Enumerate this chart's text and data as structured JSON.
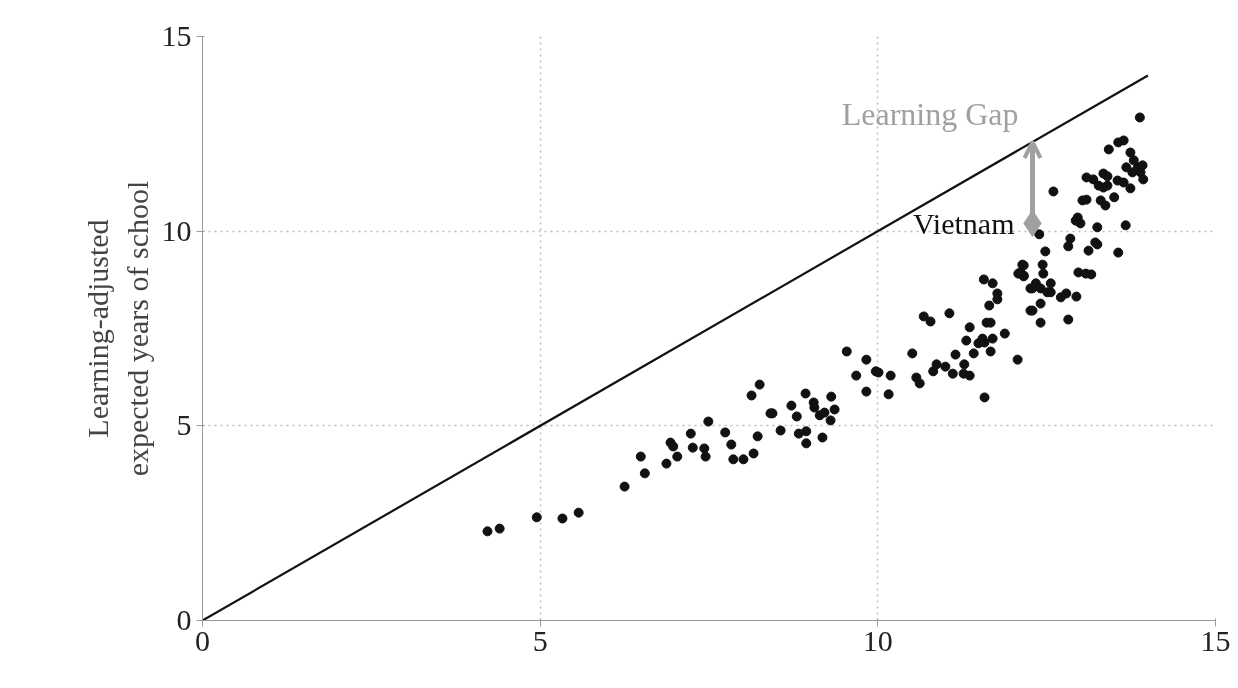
{
  "chart_data": {
    "type": "scatter",
    "ylabel": "Learning-adjusted\nexpected years of school",
    "xlim": [
      0,
      15
    ],
    "ylim": [
      0,
      15
    ],
    "xticks": [
      0,
      5,
      10,
      15
    ],
    "yticks": [
      0,
      5,
      10,
      15
    ],
    "grid": true,
    "annotations": [
      {
        "text": "Learning Gap",
        "x": 12.29,
        "y": 12.29
      }
    ],
    "series": [
      {
        "type": "line",
        "color": "#111111",
        "marker": "none",
        "x": [
          0,
          14
        ],
        "values": [
          0,
          14
        ]
      },
      {
        "color": "#111111",
        "marker": "circle",
        "x": [
          4.22,
          4.4,
          4.95,
          5.33,
          5.57,
          6.25,
          6.49,
          6.55,
          6.87,
          6.93,
          6.97,
          7.03,
          7.23,
          7.26,
          7.43,
          7.45,
          7.49,
          7.74,
          7.83,
          7.86,
          8.01,
          8.16,
          8.22,
          8.13,
          8.25,
          8.41,
          8.44,
          8.56,
          8.72,
          8.8,
          8.83,
          8.94,
          8.94,
          8.93,
          9.05,
          9.06,
          9.14,
          9.21,
          9.18,
          9.3,
          9.31,
          9.36,
          9.54,
          9.68,
          9.83,
          9.83,
          9.97,
          10.01,
          10.19,
          10.16,
          10.51,
          10.57,
          10.62,
          10.68,
          10.78,
          10.82,
          10.87,
          11.0,
          11.06,
          11.11,
          11.15,
          11.28,
          11.27,
          11.36,
          11.31,
          11.36,
          11.42,
          11.49,
          11.55,
          11.58,
          11.61,
          11.67,
          11.7,
          11.67,
          11.58,
          11.57,
          11.7,
          11.77,
          11.77,
          11.65,
          11.88,
          12.07,
          12.16,
          12.08,
          12.16,
          12.26,
          12.26,
          13.88,
          13.56,
          13.64,
          13.42,
          13.74,
          13.68,
          13.79,
          13.85,
          13.92,
          13.77,
          13.89,
          13.93,
          13.64,
          13.74,
          13.55,
          13.34,
          13.4,
          13.09,
          13.19,
          13.27,
          13.34,
          13.4,
          13.5,
          13.3,
          13.37,
          13.03,
          13.09,
          12.6,
          12.96,
          12.93,
          13.0,
          13.25,
          13.67,
          12.39,
          12.85,
          12.82,
          13.25,
          13.22,
          13.12,
          13.56,
          12.48,
          12.14,
          12.11,
          12.16,
          12.44,
          12.45,
          12.34,
          12.29,
          12.41,
          12.56,
          12.51,
          12.56,
          12.71,
          12.79,
          12.94,
          12.41,
          12.29,
          12.41,
          12.82,
          12.97,
          13.08,
          13.16
        ],
        "values": [
          2.29,
          2.36,
          2.65,
          2.62,
          2.77,
          3.44,
          4.21,
          3.78,
          4.03,
          4.57,
          4.47,
          4.21,
          4.8,
          4.44,
          4.42,
          4.21,
          5.11,
          4.83,
          4.52,
          4.14,
          4.14,
          4.29,
          4.73,
          5.78,
          6.06,
          5.32,
          5.32,
          4.88,
          5.52,
          5.24,
          4.8,
          4.86,
          4.55,
          5.83,
          5.6,
          5.47,
          5.27,
          5.34,
          4.7,
          5.14,
          5.75,
          5.42,
          6.91,
          6.29,
          6.7,
          5.88,
          6.4,
          6.37,
          6.29,
          5.81,
          6.86,
          6.24,
          6.09,
          7.81,
          7.68,
          6.4,
          6.58,
          6.52,
          7.89,
          6.34,
          6.83,
          6.58,
          6.34,
          6.29,
          7.19,
          7.53,
          6.86,
          7.12,
          7.24,
          7.14,
          7.65,
          7.65,
          7.24,
          6.91,
          5.73,
          8.76,
          8.66,
          8.4,
          8.25,
          8.09,
          7.37,
          6.7,
          9.12,
          8.91,
          8.84,
          8.53,
          7.96,
          12.92,
          12.28,
          12.33,
          12.1,
          12.02,
          11.64,
          11.82,
          11.64,
          11.69,
          11.51,
          11.51,
          11.33,
          11.25,
          11.1,
          11.3,
          11.48,
          11.41,
          11.38,
          11.33,
          11.17,
          11.12,
          11.17,
          10.87,
          10.79,
          10.66,
          10.79,
          10.81,
          11.02,
          10.35,
          10.27,
          10.2,
          10.1,
          10.15,
          9.92,
          9.81,
          9.61,
          9.66,
          9.71,
          9.5,
          9.45,
          9.48,
          9.14,
          8.94,
          8.86,
          9.14,
          8.91,
          8.66,
          8.53,
          8.53,
          8.66,
          8.43,
          8.43,
          8.3,
          8.4,
          8.32,
          8.14,
          7.96,
          7.65,
          7.73,
          8.94,
          8.91,
          8.89
        ]
      },
      {
        "type": "scatter",
        "name": "Vietnam",
        "color": "#a0a0a0",
        "marker": "diamond",
        "x": [
          12.29
        ],
        "values": [
          10.2
        ]
      }
    ]
  }
}
